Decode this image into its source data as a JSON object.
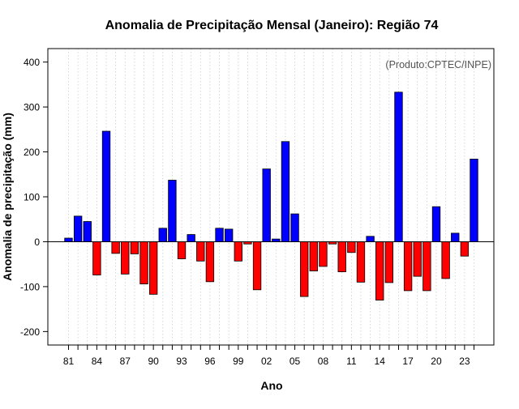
{
  "chart_data": {
    "type": "bar",
    "title": "Anomalia de Precipitação Mensal (Janeiro): Região 74",
    "xlabel": "Ano",
    "ylabel": "Anomalia de precipitação (mm)",
    "credit": "(Produto:CPTEC/INPE)",
    "ylim": [
      -230,
      430
    ],
    "yticks": [
      -200,
      -100,
      0,
      100,
      200,
      300,
      400
    ],
    "ytick_labels": [
      "-200",
      "-100",
      "0",
      "100",
      "200",
      "300",
      "400"
    ],
    "xtick_labels": [
      "81",
      "84",
      "87",
      "90",
      "93",
      "96",
      "99",
      "02",
      "05",
      "08",
      "11",
      "14",
      "17",
      "20",
      "23"
    ],
    "xtick_every": 3,
    "grid": true,
    "positive_color": "#0000ff",
    "negative_color": "#ff0000",
    "categories": [
      "1981",
      "1982",
      "1983",
      "1984",
      "1985",
      "1986",
      "1987",
      "1988",
      "1989",
      "1990",
      "1991",
      "1992",
      "1993",
      "1994",
      "1995",
      "1996",
      "1997",
      "1998",
      "1999",
      "2000",
      "2001",
      "2002",
      "2003",
      "2004",
      "2005",
      "2006",
      "2007",
      "2008",
      "2009",
      "2010",
      "2011",
      "2012",
      "2013",
      "2014",
      "2015",
      "2016",
      "2017",
      "2018",
      "2019",
      "2020",
      "2021",
      "2022",
      "2023",
      "2024"
    ],
    "values": [
      8,
      57,
      45,
      -74,
      246,
      -26,
      -72,
      -27,
      -94,
      -117,
      30,
      137,
      -38,
      16,
      -43,
      -89,
      30,
      28,
      -43,
      -5,
      -107,
      162,
      6,
      223,
      62,
      -122,
      -65,
      -55,
      -5,
      -67,
      -24,
      -90,
      12,
      -130,
      -91,
      333,
      -109,
      -77,
      -109,
      78,
      -82,
      19,
      -32,
      184
    ]
  }
}
